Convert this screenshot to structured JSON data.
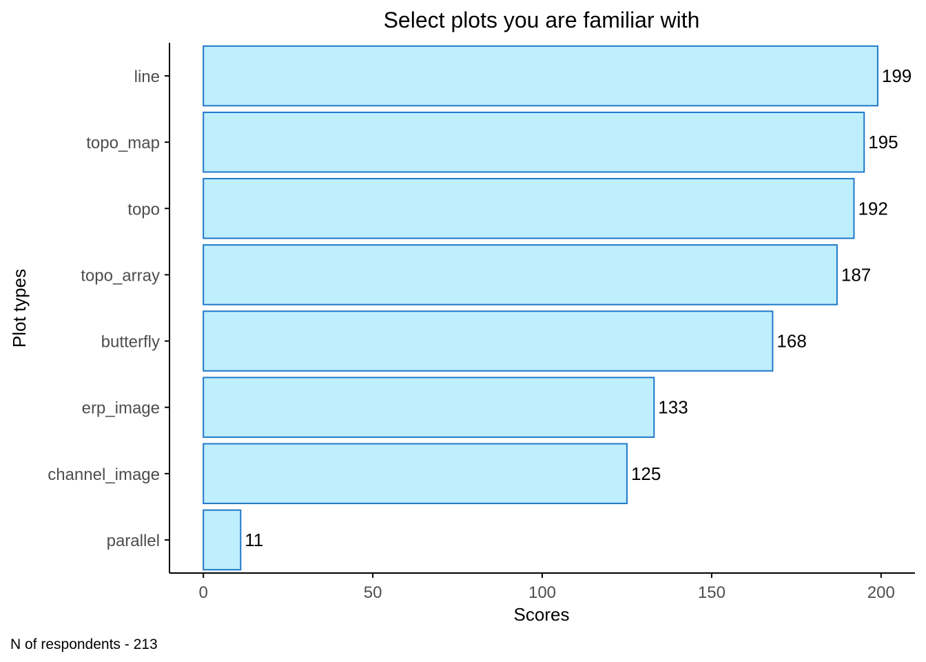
{
  "chart_data": {
    "type": "bar",
    "orientation": "horizontal",
    "title": "Select plots you are familiar with",
    "xlabel": "Scores",
    "ylabel": "Plot types",
    "caption": "N of respondents - 213",
    "categories": [
      "line",
      "topo_map",
      "topo",
      "topo_array",
      "butterfly",
      "erp_image",
      "channel_image",
      "parallel"
    ],
    "values": [
      199,
      195,
      192,
      187,
      168,
      133,
      125,
      11
    ],
    "xlim": [
      -10,
      210
    ],
    "xticks": [
      0,
      50,
      100,
      150,
      200
    ],
    "grid": false,
    "legend": "none",
    "data_labels": true,
    "colors": {
      "bar_fill": "#bfeefd",
      "bar_stroke": "#1f78c8",
      "axis": "#000000",
      "tick_text": "#4d4d4d"
    }
  }
}
